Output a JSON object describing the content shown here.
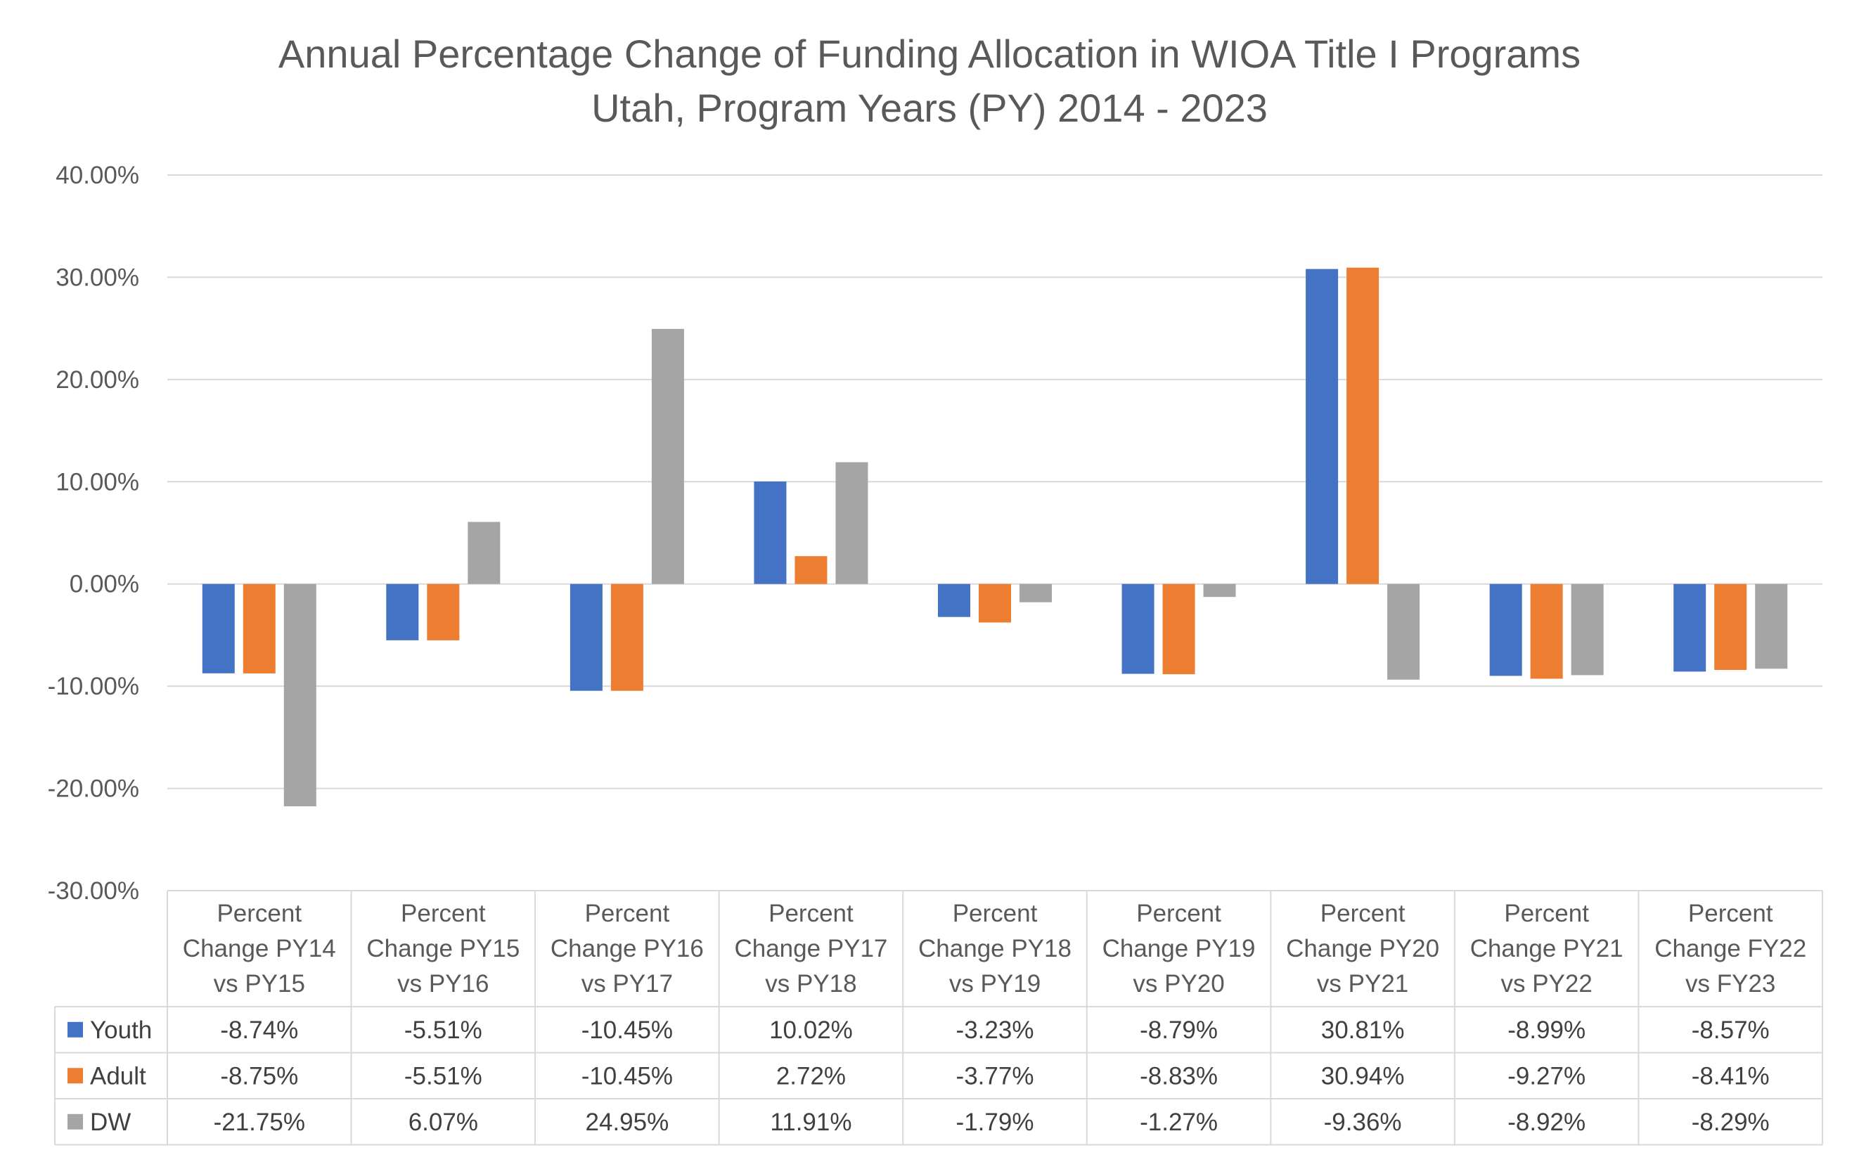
{
  "chart_data": {
    "type": "bar",
    "title": "Annual Percentage Change of Funding Allocation in WIOA Title I Programs",
    "subtitle": "Utah, Program Years (PY) 2014 - 2023",
    "categories": [
      [
        "Percent",
        "Change PY14",
        "vs PY15"
      ],
      [
        "Percent",
        "Change PY15",
        "vs PY16"
      ],
      [
        "Percent",
        "Change PY16",
        "vs PY17"
      ],
      [
        "Percent",
        "Change PY17",
        "vs PY18"
      ],
      [
        "Percent",
        "Change PY18",
        "vs PY19"
      ],
      [
        "Percent",
        "Change PY19",
        "vs PY20"
      ],
      [
        "Percent",
        "Change PY20",
        "vs PY21"
      ],
      [
        "Percent",
        "Change PY21",
        "vs PY22"
      ],
      [
        "Percent",
        "Change FY22",
        "vs FY23"
      ]
    ],
    "series": [
      {
        "name": "Youth",
        "color": "#4472c4",
        "values": [
          -8.74,
          -5.51,
          -10.45,
          10.02,
          -3.23,
          -8.79,
          30.81,
          -8.99,
          -8.57
        ],
        "labels": [
          "-8.74%",
          "-5.51%",
          "-10.45%",
          "10.02%",
          "-3.23%",
          "-8.79%",
          "30.81%",
          "-8.99%",
          "-8.57%"
        ]
      },
      {
        "name": "Adult",
        "color": "#ed7d31",
        "values": [
          -8.75,
          -5.51,
          -10.45,
          2.72,
          -3.77,
          -8.83,
          30.94,
          -9.27,
          -8.41
        ],
        "labels": [
          "-8.75%",
          "-5.51%",
          "-10.45%",
          "2.72%",
          "-3.77%",
          "-8.83%",
          "30.94%",
          "-9.27%",
          "-8.41%"
        ]
      },
      {
        "name": "DW",
        "color": "#a5a5a5",
        "values": [
          -21.75,
          6.07,
          24.95,
          11.91,
          -1.79,
          -1.27,
          -9.36,
          -8.92,
          -8.29
        ],
        "labels": [
          "-21.75%",
          "6.07%",
          "24.95%",
          "11.91%",
          "-1.79%",
          "-1.27%",
          "-9.36%",
          "-8.92%",
          "-8.29%"
        ]
      }
    ],
    "ylim": [
      -30,
      40
    ],
    "yticks": [
      40,
      30,
      20,
      10,
      0,
      -10,
      -20,
      -30
    ],
    "ytick_labels": [
      "40.00%",
      "30.00%",
      "20.00%",
      "10.00%",
      "0.00%",
      "-10.00%",
      "-20.00%",
      "-30.00%"
    ],
    "grid": true,
    "legend": "data-table",
    "xlabel": "",
    "ylabel": ""
  }
}
